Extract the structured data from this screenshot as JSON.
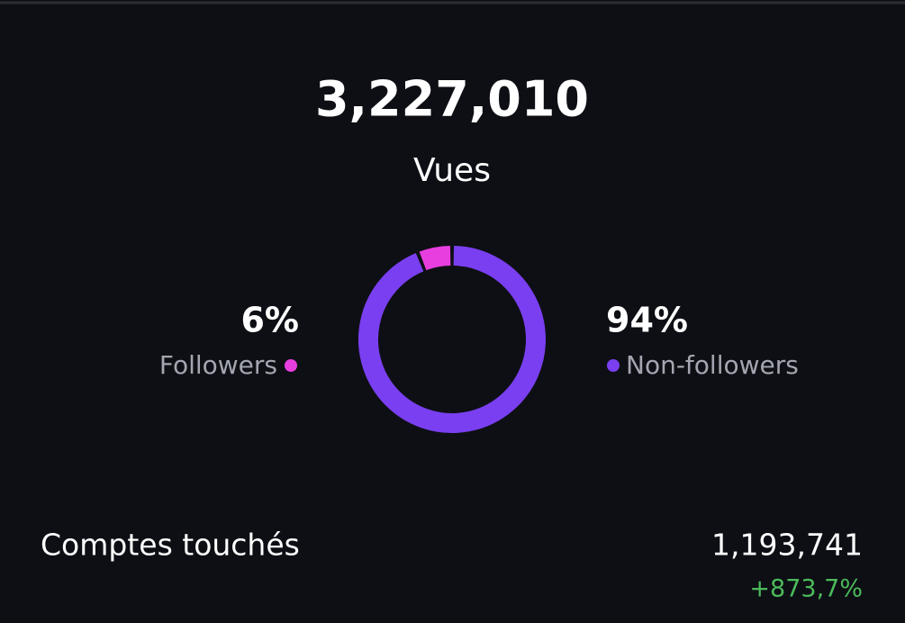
{
  "header": {
    "total": "3,227,010",
    "label": "Vues"
  },
  "chart_data": {
    "type": "donut",
    "categories": [
      "Followers",
      "Non-followers"
    ],
    "values": [
      6,
      94
    ],
    "value_labels": [
      "6%",
      "94%"
    ],
    "colors": [
      "#e83ee0",
      "#7a3ff0"
    ]
  },
  "stats": {
    "label": "Comptes touchés",
    "value": "1,193,741",
    "change": "+873,7%"
  }
}
